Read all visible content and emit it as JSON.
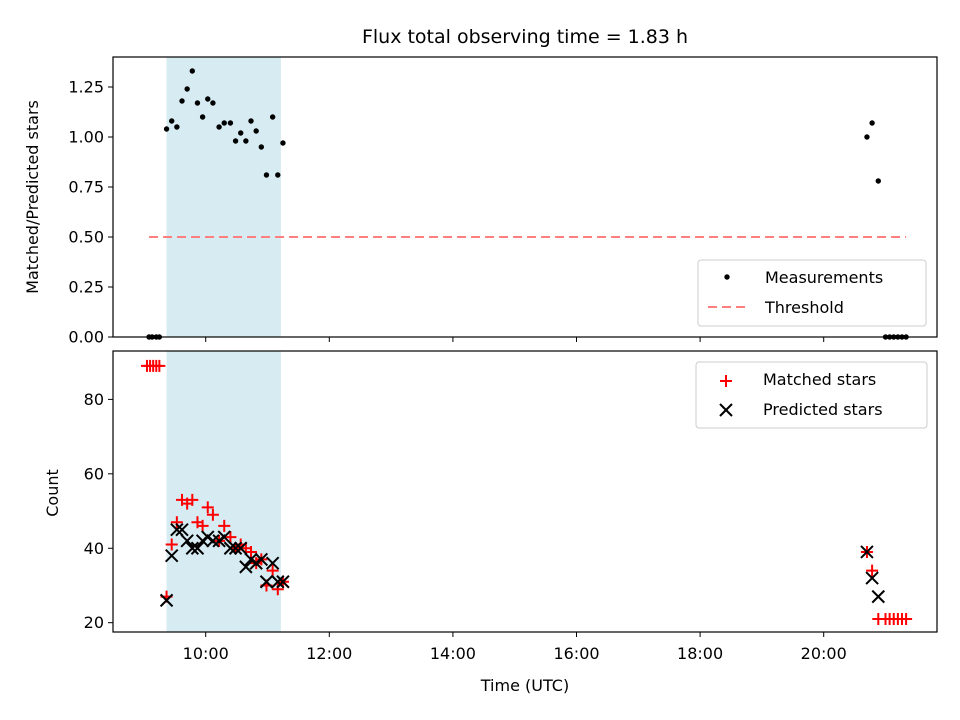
{
  "chart_data": [
    {
      "type": "scatter",
      "title": "Flux total observing time = 1.83 h",
      "ylabel": "Matched/Predicted stars",
      "xlabel": "",
      "xlim": [
        "08:30",
        "21:50"
      ],
      "ylim": [
        0,
        1.4
      ],
      "yticks": [
        0.0,
        0.25,
        0.5,
        0.75,
        1.0,
        1.25
      ],
      "ytick_labels": [
        "0.00",
        "0.25",
        "0.50",
        "0.75",
        "1.00",
        "1.25"
      ],
      "shaded_span": {
        "x": [
          "09:22",
          "11:13"
        ],
        "color": "#add8e6"
      },
      "legend": {
        "location": "lower-right",
        "entries": [
          "Measurements",
          "Threshold"
        ]
      },
      "series": [
        {
          "name": "Measurements",
          "marker": "dot",
          "color": "#000000",
          "x": [
            "09:05",
            "09:08",
            "09:12",
            "09:15",
            "09:22",
            "09:27",
            "09:32",
            "09:37",
            "09:42",
            "09:47",
            "09:52",
            "09:57",
            "10:02",
            "10:07",
            "10:13",
            "10:18",
            "10:24",
            "10:29",
            "10:34",
            "10:39",
            "10:44",
            "10:49",
            "10:54",
            "10:59",
            "11:05",
            "11:10",
            "11:15",
            "20:42",
            "20:47",
            "20:53",
            "21:00",
            "21:04",
            "21:08",
            "21:12",
            "21:16",
            "21:20"
          ],
          "y": [
            0,
            0,
            0,
            0,
            1.04,
            1.08,
            1.05,
            1.18,
            1.24,
            1.33,
            1.17,
            1.1,
            1.19,
            1.17,
            1.05,
            1.07,
            1.07,
            0.98,
            1.02,
            0.98,
            1.08,
            1.03,
            0.95,
            0.81,
            1.1,
            0.81,
            0.97,
            1.0,
            1.07,
            0.78,
            0,
            0,
            0,
            0,
            0,
            0
          ]
        },
        {
          "name": "Threshold",
          "line": "dashed",
          "color": "#ff7f7f",
          "x": [
            "09:05",
            "21:20"
          ],
          "y": [
            0.5,
            0.5
          ]
        }
      ]
    },
    {
      "type": "scatter",
      "title": "",
      "ylabel": "Count",
      "xlabel": "Time (UTC)",
      "xlim": [
        "08:30",
        "21:50"
      ],
      "ylim": [
        17.5,
        93
      ],
      "yticks": [
        20,
        40,
        60,
        80
      ],
      "ytick_labels": [
        "20",
        "40",
        "60",
        "80"
      ],
      "xticks": [
        "10:00",
        "12:00",
        "14:00",
        "16:00",
        "18:00",
        "20:00"
      ],
      "xtick_labels": [
        "10:00",
        "12:00",
        "14:00",
        "16:00",
        "18:00",
        "20:00"
      ],
      "shaded_span": {
        "x": [
          "09:22",
          "11:13"
        ],
        "color": "#add8e6"
      },
      "legend": {
        "location": "top-right",
        "entries": [
          "Matched stars",
          "Predicted stars"
        ]
      },
      "series": [
        {
          "name": "Matched stars",
          "marker": "plus",
          "color": "#ff0000",
          "x": [
            "09:03",
            "09:06",
            "09:09",
            "09:12",
            "09:15",
            "09:22",
            "09:27",
            "09:32",
            "09:37",
            "09:42",
            "09:47",
            "09:52",
            "09:57",
            "10:02",
            "10:07",
            "10:13",
            "10:18",
            "10:24",
            "10:29",
            "10:34",
            "10:39",
            "10:44",
            "10:49",
            "10:54",
            "10:59",
            "11:05",
            "11:10",
            "11:15",
            "20:42",
            "20:47",
            "20:53",
            "21:00",
            "21:04",
            "21:08",
            "21:12",
            "21:16",
            "21:20"
          ],
          "y": [
            89,
            89,
            89,
            89,
            89,
            27,
            41,
            47,
            53,
            52,
            53,
            47,
            46,
            51,
            49,
            42,
            46,
            43,
            40,
            41,
            40,
            39,
            36,
            37,
            30,
            34,
            29,
            31,
            39,
            34,
            21,
            21,
            21,
            21,
            21,
            21,
            21
          ]
        },
        {
          "name": "Predicted stars",
          "marker": "x",
          "color": "#000000",
          "x": [
            "09:22",
            "09:27",
            "09:32",
            "09:37",
            "09:42",
            "09:47",
            "09:52",
            "09:57",
            "10:02",
            "10:07",
            "10:13",
            "10:18",
            "10:24",
            "10:29",
            "10:34",
            "10:39",
            "10:44",
            "10:49",
            "10:54",
            "10:59",
            "11:05",
            "11:10",
            "11:15",
            "20:42",
            "20:47",
            "20:53"
          ],
          "y": [
            26,
            38,
            45,
            45,
            42,
            40,
            40,
            42,
            43,
            42,
            42,
            43,
            40,
            40,
            40,
            35,
            37,
            36,
            37,
            31,
            36,
            31,
            31,
            39,
            32,
            27
          ]
        }
      ]
    }
  ]
}
